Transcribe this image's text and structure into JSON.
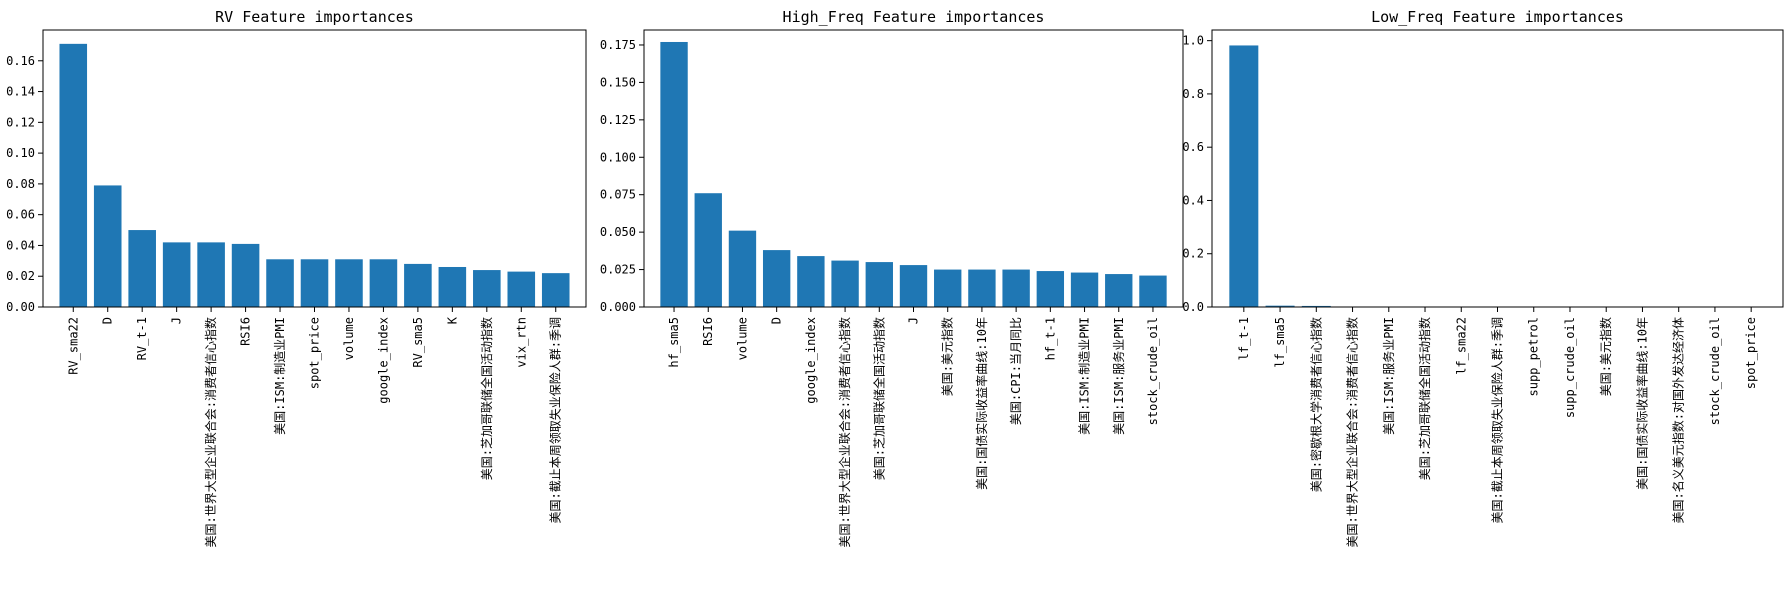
{
  "chart_data": [
    {
      "type": "bar",
      "title": "RV Feature importances",
      "xlabel": "",
      "ylabel": "",
      "ylim": [
        0,
        0.18
      ],
      "yticks": [
        0.0,
        0.02,
        0.04,
        0.06,
        0.08,
        0.1,
        0.12,
        0.14,
        0.16
      ],
      "ytick_decimals": 2,
      "grid": false,
      "color": "#1f77b4",
      "categories": [
        "RV_sma22",
        "D",
        "RV_t-1",
        "J",
        "美国:世界大型企业联合会:消费者信心指数",
        "RSI6",
        "美国:ISM:制造业PMI",
        "spot_price",
        "volume",
        "google_index",
        "RV_sma5",
        "K",
        "美国:芝加哥联储全国活动指数",
        "vix_rtn",
        "美国:截止本周领取失业保险人群:季调"
      ],
      "values": [
        0.171,
        0.079,
        0.05,
        0.042,
        0.042,
        0.041,
        0.031,
        0.031,
        0.031,
        0.031,
        0.028,
        0.026,
        0.024,
        0.023,
        0.022
      ]
    },
    {
      "type": "bar",
      "title": "High_Freq Feature importances",
      "xlabel": "",
      "ylabel": "",
      "ylim": [
        0,
        0.185
      ],
      "yticks": [
        0.0,
        0.025,
        0.05,
        0.075,
        0.1,
        0.125,
        0.15,
        0.175
      ],
      "ytick_decimals": 3,
      "grid": false,
      "color": "#1f77b4",
      "categories": [
        "hf_sma5",
        "RSI6",
        "volume",
        "D",
        "google_index",
        "美国:世界大型企业联合会:消费者信心指数",
        "美国:芝加哥联储全国活动指数",
        "J",
        "美国:美元指数",
        "美国:国债实际收益率曲线:10年",
        "美国:CPI:当月同比",
        "hf_t-1",
        "美国:ISM:制造业PMI",
        "美国:ISM:服务业PMI",
        "stock_crude_oil"
      ],
      "values": [
        0.177,
        0.076,
        0.051,
        0.038,
        0.034,
        0.031,
        0.03,
        0.028,
        0.025,
        0.025,
        0.025,
        0.024,
        0.023,
        0.022,
        0.021
      ]
    },
    {
      "type": "bar",
      "title": "Low_Freq Feature importances",
      "xlabel": "",
      "ylabel": "",
      "ylim": [
        0,
        1.04
      ],
      "yticks": [
        0.0,
        0.2,
        0.4,
        0.6,
        0.8,
        1.0
      ],
      "ytick_decimals": 1,
      "grid": false,
      "color": "#1f77b4",
      "categories": [
        "lf_t-1",
        "lf_sma5",
        "美国:密歇根大学消费者信心指数",
        "美国:世界大型企业联合会:消费者信心指数",
        "美国:ISM:服务业PMI",
        "美国:芝加哥联储全国活动指数",
        "lf_sma22",
        "美国:截止本周领取失业保险人群:季调",
        "supp_petrol",
        "supp_crude_oil",
        "美国:美元指数",
        "美国:国债实际收益率曲线:10年",
        "美国:名义美元指数:对国外发达经济体",
        "stock_crude_oil",
        "spot_price"
      ],
      "values": [
        0.982,
        0.005,
        0.004,
        0.001,
        0.001,
        0.001,
        0.0,
        0.0,
        0.0,
        0.0,
        0.0,
        0.0,
        0.0,
        0.0,
        0.0
      ]
    }
  ]
}
